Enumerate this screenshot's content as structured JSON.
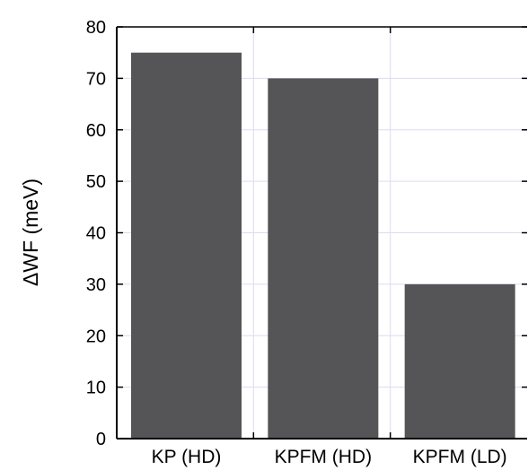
{
  "chart_data": {
    "type": "bar",
    "categories": [
      "KP (HD)",
      "KPFM (HD)",
      "KPFM (LD)"
    ],
    "values": [
      75,
      70,
      30
    ],
    "title": "",
    "xlabel": "",
    "ylabel": "ΔWF (meV)",
    "ylim": [
      0,
      80
    ],
    "yticks": [
      "0",
      "10",
      "20",
      "30",
      "40",
      "50",
      "60",
      "70",
      "80"
    ],
    "grid": true,
    "colors": {
      "bar": "#555557",
      "grid": "#dcdcf0",
      "axis": "#000000"
    }
  }
}
